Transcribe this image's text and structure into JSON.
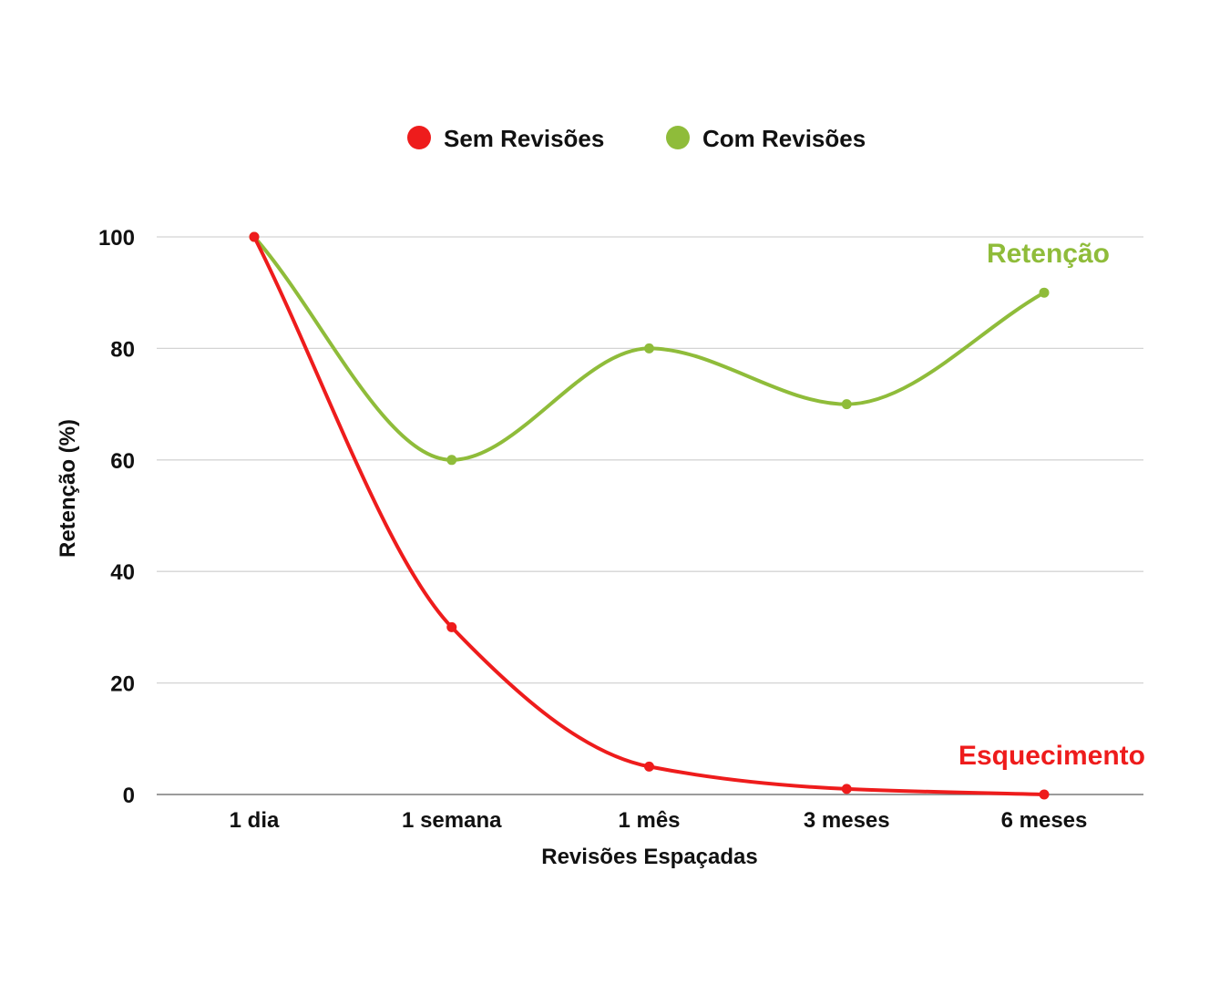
{
  "chart_data": {
    "type": "line",
    "title": "",
    "xlabel": "Revisões Espaçadas",
    "ylabel": "Retenção (%)",
    "categories": [
      "1 dia",
      "1 semana",
      "1 mês",
      "3 meses",
      "6 meses"
    ],
    "ylim": [
      0,
      100
    ],
    "yticks": [
      0,
      20,
      40,
      60,
      80,
      100
    ],
    "grid": true,
    "legend_position": "top-center",
    "series": [
      {
        "name": "Sem Revisões",
        "values": [
          100,
          30,
          5,
          1,
          0
        ],
        "color": "#ee1c1c"
      },
      {
        "name": "Com Revisões",
        "values": [
          100,
          60,
          80,
          70,
          90
        ],
        "color": "#8fbc3a"
      }
    ],
    "annotations": [
      {
        "text": "Retenção",
        "series": "Com Revisões",
        "color": "#8fbc3a"
      },
      {
        "text": "Esquecimento",
        "series": "Sem Revisões",
        "color": "#ee1c1c"
      }
    ]
  }
}
